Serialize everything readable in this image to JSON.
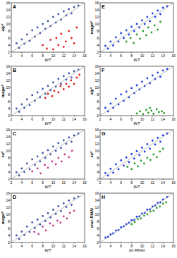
{
  "chart_data": [
    {
      "type": "scatter",
      "title": "A",
      "xlabel": "WT",
      "ylabel": "alyᶜ",
      "xlim": [
        2,
        16
      ],
      "ylim": [
        2,
        16
      ],
      "xticks": [
        2,
        4,
        6,
        8,
        10,
        12,
        14,
        16
      ],
      "yticks": [
        2,
        4,
        6,
        8,
        10,
        12,
        14,
        16
      ],
      "series": [
        {
          "color": "#4058a8",
          "x": [
            3,
            3.5,
            4,
            4.5,
            5,
            5.5,
            6,
            6.5,
            7,
            7.5,
            8,
            8.5,
            9,
            9.5,
            10,
            10.5,
            11,
            11.5,
            12,
            12.5,
            13,
            13.5,
            14,
            14.8
          ],
          "values": [
            4.5,
            3.2,
            5.6,
            4.4,
            7,
            5.2,
            8.2,
            6.4,
            9,
            7.4,
            10,
            8.6,
            10.8,
            9.4,
            12,
            10.4,
            12.8,
            11.2,
            13.6,
            12.4,
            14.2,
            13,
            14.8,
            15.2
          ]
        },
        {
          "color": "#e0201c",
          "x": [
            8,
            8.8,
            9.5,
            10,
            10.6,
            11,
            11.5,
            12,
            12.4,
            13,
            13.5,
            14,
            14.5
          ],
          "values": [
            4,
            3,
            5.5,
            2.8,
            6,
            4,
            7.2,
            3.5,
            5,
            8,
            6,
            4.5,
            9
          ]
        }
      ]
    },
    {
      "type": "scatter",
      "title": "E",
      "xlabel": "WT",
      "ylabel": "magoᶜ",
      "xlim": [
        2,
        16
      ],
      "ylim": [
        2,
        16
      ],
      "xticks": [
        2,
        4,
        6,
        8,
        10,
        12,
        14,
        16
      ],
      "yticks": [
        2,
        4,
        6,
        8,
        10,
        12,
        14,
        16
      ],
      "series": [
        {
          "color": "#1f3fe6",
          "x": [
            3,
            3.5,
            4,
            4.5,
            5,
            5.5,
            6,
            6.5,
            7,
            7.5,
            8,
            8.5,
            9,
            9.5,
            10,
            10.5,
            11,
            11.5,
            12,
            12.5,
            13,
            13.5,
            14,
            14.8
          ],
          "values": [
            3.8,
            3,
            5,
            3.9,
            6.2,
            5,
            7.4,
            6,
            8.2,
            7,
            9.2,
            8,
            10,
            9,
            11,
            10,
            12,
            10.8,
            13,
            12,
            13.8,
            12.8,
            14.6,
            15
          ]
        },
        {
          "color": "#2aa02a",
          "x": [
            7,
            7.8,
            8.4,
            9,
            9.6,
            10.2,
            10.8,
            11.2,
            11.8,
            12.4,
            13,
            13.5
          ],
          "values": [
            5,
            6,
            4.6,
            7,
            5.8,
            8,
            6.8,
            9,
            7.6,
            9.6,
            8.4,
            10.6
          ]
        }
      ]
    },
    {
      "type": "scatter",
      "title": "B",
      "xlabel": "WT",
      "ylabel": "magoᶜ",
      "xlim": [
        2,
        16
      ],
      "ylim": [
        2,
        16
      ],
      "xticks": [
        2,
        4,
        6,
        8,
        10,
        12,
        14,
        16
      ],
      "yticks": [
        2,
        4,
        6,
        8,
        10,
        12,
        14,
        16
      ],
      "series": [
        {
          "color": "#4058a8",
          "x": [
            3,
            3.5,
            4,
            4.5,
            5,
            5.5,
            6,
            6.5,
            7,
            7.5,
            8,
            8.5,
            9,
            9.5,
            10,
            10.5,
            11,
            11.5,
            12,
            12.5,
            13,
            13.5,
            14,
            14.8
          ],
          "values": [
            4,
            3.1,
            5.2,
            4.2,
            6.6,
            5,
            7.8,
            6.2,
            8.6,
            7.2,
            9.6,
            8.2,
            10.4,
            9.2,
            11.4,
            10.2,
            12.4,
            11,
            13.2,
            12.2,
            14,
            12.8,
            14.6,
            15
          ]
        },
        {
          "color": "#e0201c",
          "x": [
            8.5,
            9,
            9.8,
            10.2,
            11,
            11.4,
            12,
            12.5,
            13,
            13.4,
            14,
            14.5,
            15
          ],
          "values": [
            7,
            8.2,
            7.5,
            9,
            8.6,
            10.4,
            9.5,
            11,
            10.2,
            12,
            11,
            12.8,
            13.6
          ]
        }
      ]
    },
    {
      "type": "scatter",
      "title": "F",
      "xlabel": "WT",
      "ylabel": "alyᶜ",
      "xlim": [
        2,
        16
      ],
      "ylim": [
        2,
        16
      ],
      "xticks": [
        2,
        4,
        6,
        8,
        10,
        12,
        14,
        16
      ],
      "yticks": [
        2,
        4,
        6,
        8,
        10,
        12,
        14,
        16
      ],
      "series": [
        {
          "color": "#1f3fe6",
          "x": [
            3,
            3.5,
            4,
            4.5,
            5,
            5.5,
            6,
            6.5,
            7,
            7.5,
            8,
            8.5,
            9,
            9.5,
            10,
            10.5,
            11,
            11.5,
            12,
            12.5,
            13,
            13.5,
            14,
            14.8
          ],
          "values": [
            4.2,
            3.2,
            5.4,
            4.2,
            6.8,
            5.2,
            8,
            6.2,
            8.8,
            7.2,
            9.8,
            8.4,
            10.6,
            9.4,
            11.6,
            10.4,
            12.6,
            11.2,
            13.4,
            12.4,
            14.2,
            13,
            14.8,
            15.2
          ]
        },
        {
          "color": "#2aa02a",
          "x": [
            9,
            9.6,
            10.2,
            10.8,
            11.2,
            11.8,
            12.2,
            12.8,
            13.2,
            13.8,
            14.2,
            11.5
          ],
          "values": [
            2.6,
            3.2,
            2.4,
            3.6,
            2.8,
            3.4,
            2.5,
            3.8,
            3,
            3.2,
            2.7,
            4.2
          ]
        }
      ]
    },
    {
      "type": "scatter",
      "title": "C",
      "xlabel": "WT",
      "ylabel": "saᶜ",
      "xlim": [
        2,
        16
      ],
      "ylim": [
        2,
        16
      ],
      "xticks": [
        2,
        4,
        6,
        8,
        10,
        12,
        14,
        16
      ],
      "yticks": [
        2,
        4,
        6,
        8,
        10,
        12,
        14,
        16
      ],
      "series": [
        {
          "color": "#4058a8",
          "x": [
            3,
            3.5,
            4,
            4.5,
            5,
            5.5,
            6,
            6.5,
            7,
            7.5,
            8,
            8.5,
            9,
            9.5,
            10,
            10.5,
            11,
            11.5,
            12,
            12.5,
            13,
            13.5,
            14,
            14.8
          ],
          "values": [
            3.9,
            3,
            5,
            4,
            6.4,
            4.8,
            7.6,
            6,
            8.4,
            7,
            9.4,
            8,
            10.2,
            9,
            11.2,
            10,
            12.2,
            10.8,
            13,
            12,
            13.8,
            12.6,
            14.4,
            14.9
          ]
        },
        {
          "color": "#c0408c",
          "x": [
            6,
            7,
            7.6,
            8.4,
            9,
            9.8,
            10.5,
            11,
            11.6,
            12.2,
            13,
            13.6
          ],
          "values": [
            4.2,
            5,
            3.6,
            6,
            5.2,
            7,
            6.2,
            8,
            7,
            9,
            8.2,
            10
          ]
        }
      ]
    },
    {
      "type": "scatter",
      "title": "G",
      "xlabel": "WT",
      "ylabel": "saᶜ",
      "xlim": [
        2,
        16
      ],
      "ylim": [
        2,
        16
      ],
      "xticks": [
        2,
        4,
        6,
        8,
        10,
        12,
        14,
        16
      ],
      "yticks": [
        2,
        4,
        6,
        8,
        10,
        12,
        14,
        16
      ],
      "series": [
        {
          "color": "#1f3fe6",
          "x": [
            3,
            3.5,
            4,
            4.5,
            5,
            5.5,
            6,
            6.5,
            7,
            7.5,
            8,
            8.5,
            9,
            9.5,
            10,
            10.5,
            11,
            11.5,
            12,
            12.5,
            13,
            13.5,
            14,
            14.8
          ],
          "values": [
            3.7,
            3,
            4.9,
            3.8,
            6.2,
            4.8,
            7.3,
            5.8,
            8.1,
            6.8,
            9.1,
            7.8,
            9.9,
            8.8,
            10.9,
            9.8,
            11.9,
            10.6,
            12.9,
            11.8,
            13.7,
            12.6,
            14.4,
            14.9
          ]
        },
        {
          "color": "#2aa02a",
          "x": [
            7.2,
            8,
            8.6,
            9.2,
            9.8,
            10.4,
            11,
            11.6,
            12.2,
            12.8,
            13.4,
            14
          ],
          "values": [
            5.5,
            4.8,
            6.4,
            5.6,
            7.2,
            6.4,
            8,
            7.4,
            9,
            8.2,
            9.8,
            10.6
          ]
        }
      ]
    },
    {
      "type": "scatter",
      "title": "D",
      "xlabel": "WT",
      "ylabel": "magoᶜ",
      "xlim": [
        2,
        16
      ],
      "ylim": [
        2,
        16
      ],
      "xticks": [
        2,
        4,
        6,
        8,
        10,
        12,
        14,
        16
      ],
      "yticks": [
        2,
        4,
        6,
        8,
        10,
        12,
        14,
        16
      ],
      "series": [
        {
          "color": "#4058a8",
          "x": [
            3,
            3.5,
            4,
            4.5,
            5,
            5.5,
            6,
            6.5,
            7,
            7.5,
            8,
            8.5,
            9,
            9.5,
            10,
            10.5,
            11,
            11.5,
            12,
            12.5,
            13,
            13.5,
            14,
            14.8
          ],
          "values": [
            4,
            3,
            5.1,
            4.1,
            6.5,
            5,
            7.7,
            6.1,
            8.5,
            7.1,
            9.5,
            8.1,
            10.3,
            9.1,
            11.3,
            10.1,
            12.3,
            10.9,
            13.1,
            12.1,
            13.9,
            12.7,
            14.5,
            15
          ]
        },
        {
          "color": "#c0408c",
          "x": [
            6.4,
            7.2,
            8,
            8.6,
            9.4,
            10,
            10.8,
            11.4,
            12,
            12.6,
            13.2,
            14
          ],
          "values": [
            5,
            4.4,
            6.5,
            5.4,
            7.4,
            6.8,
            8.2,
            7.6,
            9.4,
            8.8,
            10.4,
            11
          ]
        }
      ]
    },
    {
      "type": "scatter",
      "title": "H",
      "xlabel": "tin RNAi",
      "ylabel": "wuc RNAi",
      "xlim": [
        2,
        16
      ],
      "ylim": [
        2,
        16
      ],
      "xticks": [
        2,
        4,
        6,
        8,
        10,
        12,
        14,
        16
      ],
      "yticks": [
        2,
        4,
        6,
        8,
        10,
        12,
        14,
        16
      ],
      "series": [
        {
          "color": "#1f3fe6",
          "x": [
            3,
            3.5,
            4,
            4.5,
            5,
            5.5,
            6,
            6.5,
            7,
            7.5,
            8,
            8.5,
            9,
            9.5,
            10,
            10.5,
            11,
            11.5,
            12,
            12.5,
            13,
            13.5,
            14,
            14.8
          ],
          "values": [
            3.4,
            3.6,
            4.3,
            4.6,
            5.4,
            5.5,
            6.3,
            6.6,
            7.2,
            7.6,
            8.3,
            8.4,
            9.3,
            9.4,
            10.2,
            10.4,
            11.3,
            11.4,
            12.2,
            12.5,
            13.2,
            13.4,
            14.2,
            14.9
          ]
        },
        {
          "color": "#2aa02a",
          "x": [
            8,
            8.6,
            9.2,
            9.8,
            10.4,
            11,
            11.6,
            12.2,
            12.8,
            13.4,
            14,
            14.6
          ],
          "values": [
            7.2,
            7.8,
            8.6,
            8.8,
            9.6,
            10,
            10.8,
            11,
            11.8,
            12.2,
            13,
            13.4
          ]
        }
      ]
    }
  ]
}
